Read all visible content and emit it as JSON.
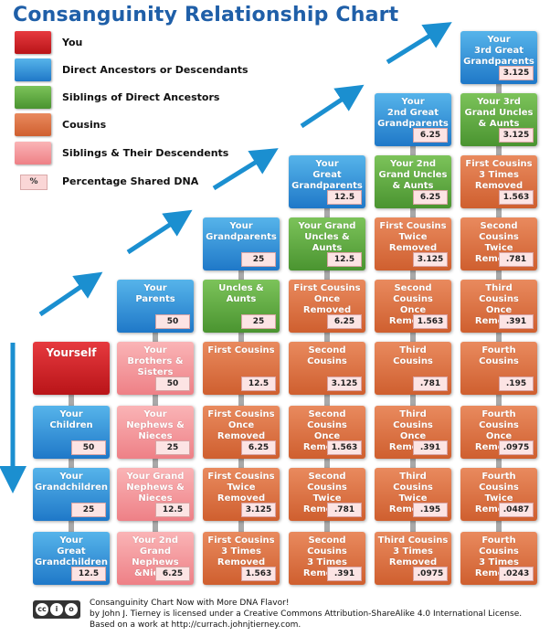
{
  "title": "Consanguinity Relationship Chart",
  "legend": [
    {
      "label": "You",
      "color": "#d42428"
    },
    {
      "label": "Direct Ancestors or Descendants",
      "color": "#3a96da"
    },
    {
      "label": "Siblings of Direct Ancestors",
      "color": "#64ac45"
    },
    {
      "label": "Cousins",
      "color": "#dc7346"
    },
    {
      "label": "Siblings & Their Descendents",
      "color": "#f59aa0"
    },
    {
      "label": "Percentage Shared DNA",
      "sample": "%"
    }
  ],
  "grid": {
    "columns": 6,
    "rows": 9,
    "cells": [
      {
        "col": 0,
        "row": 5,
        "label": "Yourself",
        "type": "you",
        "pct": ""
      },
      {
        "col": 0,
        "row": 6,
        "label": "Your\nChildren",
        "type": "direct",
        "pct": "50"
      },
      {
        "col": 0,
        "row": 7,
        "label": "Your\nGrandchildren",
        "type": "direct",
        "pct": "25"
      },
      {
        "col": 0,
        "row": 8,
        "label": "Your\nGreat\nGrandchildren",
        "type": "direct",
        "pct": "12.5"
      },
      {
        "col": 1,
        "row": 4,
        "label": "Your\nParents",
        "type": "direct",
        "pct": "50"
      },
      {
        "col": 1,
        "row": 5,
        "label": "Your\nBrothers &\nSisters",
        "type": "sibdesc",
        "pct": "50"
      },
      {
        "col": 1,
        "row": 6,
        "label": "Your\nNephews &\nNieces",
        "type": "sibdesc",
        "pct": "25"
      },
      {
        "col": 1,
        "row": 7,
        "label": "Your Grand\nNephews &\nNieces",
        "type": "sibdesc",
        "pct": "12.5"
      },
      {
        "col": 1,
        "row": 8,
        "label": "Your 2nd Grand\nNephews\n&Nieces",
        "type": "sibdesc",
        "pct": "6.25"
      },
      {
        "col": 2,
        "row": 3,
        "label": "Your\nGrandparents",
        "type": "direct",
        "pct": "25"
      },
      {
        "col": 2,
        "row": 4,
        "label": "Uncles &\nAunts",
        "type": "sibling",
        "pct": "25"
      },
      {
        "col": 2,
        "row": 5,
        "label": "First Cousins",
        "type": "cousin",
        "pct": "12.5"
      },
      {
        "col": 2,
        "row": 6,
        "label": "First Cousins\nOnce Removed",
        "type": "cousin",
        "pct": "6.25"
      },
      {
        "col": 2,
        "row": 7,
        "label": "First Cousins\nTwice\nRemoved",
        "type": "cousin",
        "pct": "3.125"
      },
      {
        "col": 2,
        "row": 8,
        "label": "First Cousins\n3 Times\nRemoved",
        "type": "cousin",
        "pct": "1.563"
      },
      {
        "col": 3,
        "row": 2,
        "label": "Your\nGreat\nGrandparents",
        "type": "direct",
        "pct": "12.5"
      },
      {
        "col": 3,
        "row": 3,
        "label": "Your Grand\nUncles &\nAunts",
        "type": "sibling",
        "pct": "12.5"
      },
      {
        "col": 3,
        "row": 4,
        "label": "First Cousins\nOnce\nRemoved",
        "type": "cousin",
        "pct": "6.25"
      },
      {
        "col": 3,
        "row": 5,
        "label": "Second\nCousins",
        "type": "cousin",
        "pct": "3.125"
      },
      {
        "col": 3,
        "row": 6,
        "label": "Second\nCousins\nOnce Removed",
        "type": "cousin",
        "pct": "1.563"
      },
      {
        "col": 3,
        "row": 7,
        "label": "Second\nCousins\nTwice Removed",
        "type": "cousin",
        "pct": ".781"
      },
      {
        "col": 3,
        "row": 8,
        "label": "Second Cousins\n3 Times\nRemoved",
        "type": "cousin",
        "pct": ".391"
      },
      {
        "col": 4,
        "row": 1,
        "label": "Your\n2nd Great\nGrandparents",
        "type": "direct",
        "pct": "6.25"
      },
      {
        "col": 4,
        "row": 2,
        "label": "Your 2nd\nGrand Uncles\n& Aunts",
        "type": "sibling",
        "pct": "6.25"
      },
      {
        "col": 4,
        "row": 3,
        "label": "First Cousins\nTwice\nRemoved",
        "type": "cousin",
        "pct": "3.125"
      },
      {
        "col": 4,
        "row": 4,
        "label": "Second\nCousins\nOnce Removed",
        "type": "cousin",
        "pct": "1.563"
      },
      {
        "col": 4,
        "row": 5,
        "label": "Third\nCousins",
        "type": "cousin",
        "pct": ".781"
      },
      {
        "col": 4,
        "row": 6,
        "label": "Third\nCousins\nOnce Removed",
        "type": "cousin",
        "pct": ".391"
      },
      {
        "col": 4,
        "row": 7,
        "label": "Third\nCousins\nTwice Removed",
        "type": "cousin",
        "pct": ".195"
      },
      {
        "col": 4,
        "row": 8,
        "label": "Third Cousins\n3 Times\nRemoved",
        "type": "cousin",
        "pct": ".0975"
      },
      {
        "col": 5,
        "row": 0,
        "label": "Your\n3rd Great\nGrandparents",
        "type": "direct",
        "pct": "3.125"
      },
      {
        "col": 5,
        "row": 1,
        "label": "Your 3rd\nGrand Uncles\n& Aunts",
        "type": "sibling",
        "pct": "3.125"
      },
      {
        "col": 5,
        "row": 2,
        "label": "First Cousins\n3 Times\nRemoved",
        "type": "cousin",
        "pct": "1.563"
      },
      {
        "col": 5,
        "row": 3,
        "label": "Second\nCousins\nTwice Removed",
        "type": "cousin",
        "pct": ".781"
      },
      {
        "col": 5,
        "row": 4,
        "label": "Third\nCousins\nOnce Removed",
        "type": "cousin",
        "pct": ".391"
      },
      {
        "col": 5,
        "row": 5,
        "label": "Fourth\nCousins",
        "type": "cousin",
        "pct": ".195"
      },
      {
        "col": 5,
        "row": 6,
        "label": "Fourth\nCousins\nOnce Removed",
        "type": "cousin",
        "pct": ".0975"
      },
      {
        "col": 5,
        "row": 7,
        "label": "Fourth\nCousins\nTwice Removed",
        "type": "cousin",
        "pct": ".0487"
      },
      {
        "col": 5,
        "row": 8,
        "label": "Fourth Cousins\n3 Times\nRemoved",
        "type": "cousin",
        "pct": ".0243"
      }
    ]
  },
  "footer": {
    "line1": "Consanguinity Chart Now with More DNA Flavor!",
    "line2": "by John J. Tierney is licensed under a Creative Commons Attribution-ShareAlike 4.0 International License.",
    "line3": "Based on a work at http://currach.johnjtierney.com.",
    "cc_badge": [
      "cc",
      "i",
      "o"
    ]
  }
}
